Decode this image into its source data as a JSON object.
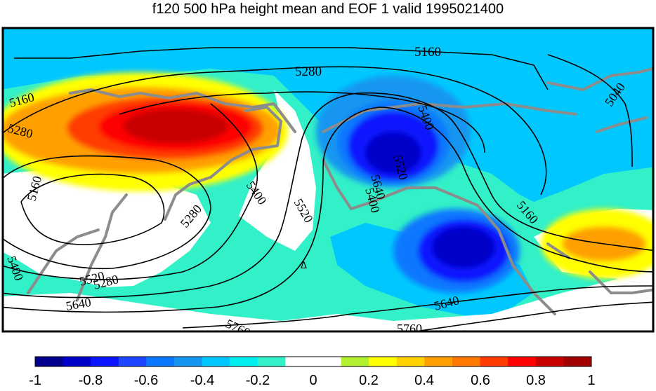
{
  "title": "f120 500 hPa height mean and EOF 1 valid 1995021400",
  "contour_labels": [
    "5160",
    "5280",
    "5160",
    "5280",
    "5400",
    "5520",
    "5640",
    "5160",
    "5280",
    "5400",
    "5520",
    "5640",
    "5160",
    "5280",
    "5400",
    "5520",
    "5640",
    "5760",
    "5760",
    "5040",
    "5400"
  ],
  "marker_label": "Δ",
  "colorbar": {
    "colors": [
      "#00008c",
      "#0000c8",
      "#0a14ff",
      "#1e46ff",
      "#0a78ff",
      "#1496f0",
      "#00c8ff",
      "#00f0f0",
      "#32f0c8",
      "#ffffff",
      "#ffffff",
      "#b4f032",
      "#ffff00",
      "#ffd200",
      "#ffa000",
      "#ff7800",
      "#ff3c00",
      "#ff0000",
      "#c80000",
      "#a00000"
    ],
    "tick_labels": [
      "-1",
      "-0.8",
      "-0.6",
      "-0.4",
      "-0.2",
      "0",
      "0.2",
      "0.4",
      "0.6",
      "0.8",
      "1"
    ]
  }
}
